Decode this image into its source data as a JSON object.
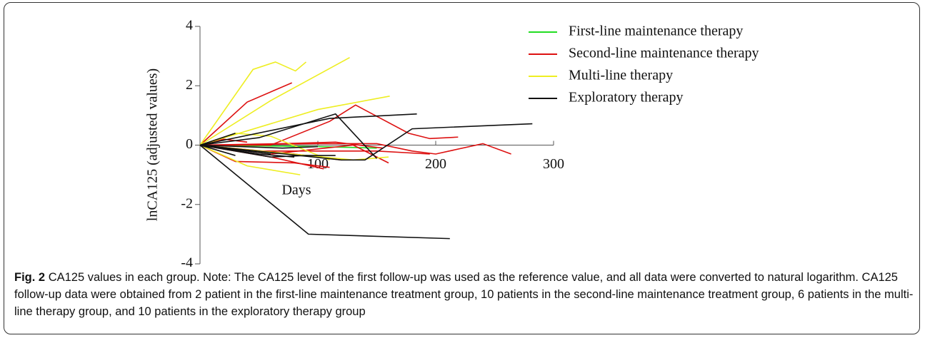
{
  "chart_data": {
    "type": "line",
    "ylabel": "lnCA125 (adjusted values)",
    "xlabel": "Days",
    "xlim": [
      0,
      300
    ],
    "xticks": [
      100,
      200,
      300
    ],
    "ylim": [
      -4,
      4
    ],
    "yticks": [
      4,
      2,
      0,
      -2,
      -4
    ],
    "legend": "top-right",
    "series": [
      {
        "name": "First-line maintenance therapy",
        "color": "#22dd22",
        "lines": [
          {
            "x": [
              0,
              60,
              80
            ],
            "values": [
              0,
              -0.25,
              -0.3
            ]
          },
          {
            "x": [
              0,
              100,
              150
            ],
            "values": [
              0,
              -0.05,
              -0.1
            ]
          }
        ]
      },
      {
        "name": "Second-line maintenance therapy",
        "color": "#dd1111",
        "lines": [
          {
            "x": [
              0,
              40,
              78
            ],
            "values": [
              0,
              1.45,
              2.1
            ]
          },
          {
            "x": [
              0,
              60,
              110,
              132,
              177,
              195,
              219
            ],
            "values": [
              0,
              0,
              0.8,
              1.35,
              0.4,
              0.22,
              0.27
            ]
          },
          {
            "x": [
              0,
              100,
              150,
              180,
              200,
              240,
              264
            ],
            "values": [
              0,
              0.05,
              0.05,
              -0.2,
              -0.3,
              0.05,
              -0.3
            ]
          },
          {
            "x": [
              0,
              30,
              80,
              110
            ],
            "values": [
              0,
              -0.55,
              -0.6,
              -0.75
            ]
          },
          {
            "x": [
              0,
              60,
              130,
              160
            ],
            "values": [
              0,
              -0.3,
              0,
              -0.6
            ]
          },
          {
            "x": [
              0,
              50,
              150,
              195
            ],
            "values": [
              0,
              -0.2,
              -0.2,
              -0.3
            ]
          },
          {
            "x": [
              0,
              70,
              115,
              155
            ],
            "values": [
              0,
              0.05,
              0.1,
              -0.1
            ]
          },
          {
            "x": [
              0,
              60,
              105
            ],
            "values": [
              0,
              -0.4,
              -0.8
            ]
          },
          {
            "x": [
              0,
              80,
              120
            ],
            "values": [
              0,
              -0.3,
              -0.5
            ]
          },
          {
            "x": [
              0,
              20,
              40
            ],
            "values": [
              0,
              0.2,
              0.1
            ]
          }
        ]
      },
      {
        "name": "Multi-line therapy",
        "color": "#eeee22",
        "lines": [
          {
            "x": [
              0,
              45,
              64,
              81,
              90
            ],
            "values": [
              0,
              2.55,
              2.8,
              2.5,
              2.8
            ]
          },
          {
            "x": [
              0,
              60,
              127
            ],
            "values": [
              0,
              1.5,
              2.95
            ]
          },
          {
            "x": [
              0,
              100,
              161
            ],
            "values": [
              0,
              1.2,
              1.65
            ]
          },
          {
            "x": [
              0,
              40,
              85
            ],
            "values": [
              0,
              -0.7,
              -1.0
            ]
          },
          {
            "x": [
              0,
              130,
              160
            ],
            "values": [
              0,
              -0.5,
              -0.4
            ]
          },
          {
            "x": [
              0,
              30,
              60,
              110
            ],
            "values": [
              0,
              0.4,
              0.3,
              -0.5
            ]
          }
        ]
      },
      {
        "name": "Exploratory therapy",
        "color": "#111111",
        "lines": [
          {
            "x": [
              0,
              92,
              212
            ],
            "values": [
              0,
              -3.0,
              -3.15
            ]
          },
          {
            "x": [
              0,
              110,
              184
            ],
            "values": [
              0,
              0.9,
              1.05
            ]
          },
          {
            "x": [
              0,
              30
            ],
            "values": [
              0,
              0.4
            ]
          },
          {
            "x": [
              0,
              50,
              115,
              150
            ],
            "values": [
              0,
              0.25,
              1.05,
              -0.45
            ]
          },
          {
            "x": [
              0,
              120,
              140,
              180,
              282
            ],
            "values": [
              0,
              -0.5,
              -0.5,
              0.55,
              0.72
            ]
          },
          {
            "x": [
              0,
              60,
              90,
              115
            ],
            "values": [
              0,
              -0.4,
              -0.35,
              -0.35
            ]
          },
          {
            "x": [
              0,
              50,
              80
            ],
            "values": [
              0,
              -0.3,
              -0.4
            ]
          },
          {
            "x": [
              0,
              40,
              60
            ],
            "values": [
              0,
              -0.2,
              -0.3
            ]
          },
          {
            "x": [
              0,
              70,
              100
            ],
            "values": [
              0,
              -0.1,
              -0.05
            ]
          },
          {
            "x": [
              0,
              30
            ],
            "values": [
              0,
              -0.35
            ]
          }
        ]
      }
    ]
  },
  "caption": {
    "label": "Fig. 2",
    "text": "CA125 values in each group. Note: The CA125 level of the first follow-up was used as the reference value, and all data were converted to natural logarithm. CA125 follow-up data were obtained from 2 patient in the first-line maintenance treatment group, 10 patients in the second-line maintenance treatment group, 6 patients in the multi-line therapy group, and 10 patients in the exploratory therapy group"
  }
}
